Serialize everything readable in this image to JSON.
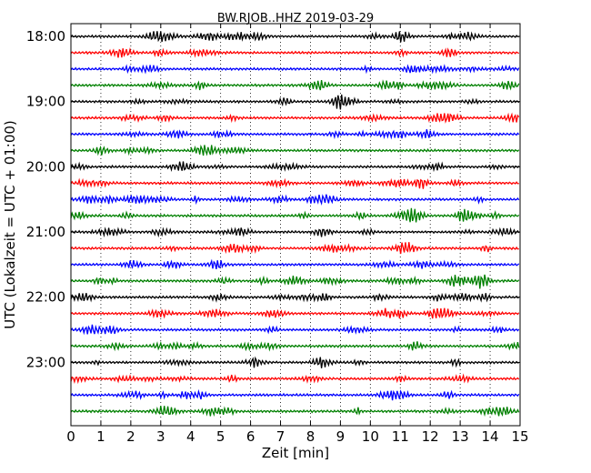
{
  "chart_data": {
    "type": "line",
    "title": "BW.RJOB..HHZ 2019-03-29",
    "xlabel": "Zeit  [min]",
    "ylabel": "UTC (Lokalzeit = UTC + 01:00)",
    "xlim": [
      0,
      15
    ],
    "x_ticks": [
      "0",
      "1",
      "2",
      "3",
      "4",
      "5",
      "6",
      "7",
      "8",
      "9",
      "10",
      "11",
      "12",
      "13",
      "14",
      "15"
    ],
    "y_ticks": [
      {
        "label": "18:00",
        "row": 0
      },
      {
        "label": "19:00",
        "row": 4
      },
      {
        "label": "20:00",
        "row": 8
      },
      {
        "label": "21:00",
        "row": 12
      },
      {
        "label": "22:00",
        "row": 16
      },
      {
        "label": "23:00",
        "row": 20
      }
    ],
    "grid": {
      "x_vertical_dotted": true
    },
    "trace_colors": [
      "#000000",
      "#ff0000",
      "#0000ff",
      "#008000"
    ],
    "minutes_per_trace": 15,
    "traces": [
      {
        "start": "18:00"
      },
      {
        "start": "18:15"
      },
      {
        "start": "18:30"
      },
      {
        "start": "18:45"
      },
      {
        "start": "19:00"
      },
      {
        "start": "19:15"
      },
      {
        "start": "19:30"
      },
      {
        "start": "19:45"
      },
      {
        "start": "20:00"
      },
      {
        "start": "20:15"
      },
      {
        "start": "20:30"
      },
      {
        "start": "20:45"
      },
      {
        "start": "21:00"
      },
      {
        "start": "21:15"
      },
      {
        "start": "21:30"
      },
      {
        "start": "21:45"
      },
      {
        "start": "22:00"
      },
      {
        "start": "22:15"
      },
      {
        "start": "22:30"
      },
      {
        "start": "22:45"
      },
      {
        "start": "23:00"
      },
      {
        "start": "23:15"
      },
      {
        "start": "23:30"
      },
      {
        "start": "23:45"
      }
    ]
  }
}
